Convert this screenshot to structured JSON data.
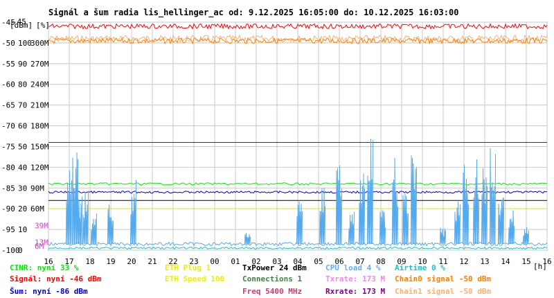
{
  "header": {
    "title": "Signál a šum radia lis_hellinger_ac od: 9.12.2025 16:05:00 do: 10.12.2025 16:03:00",
    "unit_left": "[dBm]",
    "unit_mid": "[%]",
    "unit_right": "[%]",
    "unit_time": "[h]"
  },
  "chart_data": {
    "type": "line",
    "title": "Signál a šum radia lis_hellinger_ac od: 9.12.2025 16:05:00 do: 10.12.2025 16:03:00",
    "xlabel": "[h]",
    "ylabel": "[dBm]",
    "ylim": [
      -100,
      -45
    ],
    "xlim": [
      16,
      40
    ],
    "grid": true,
    "y_ticks": [
      -45,
      -50,
      -55,
      -60,
      -65,
      -70,
      -75,
      -80,
      -85,
      -90,
      -95,
      -100
    ],
    "y_labels_dbm": [
      "-45",
      "-50",
      "-55",
      "-60",
      "-65",
      "-70",
      "-75",
      "-80",
      "-85",
      "-90",
      "-95",
      "-100"
    ],
    "y_labels_pct": [
      "",
      "100",
      "90",
      "80",
      "70",
      "60",
      "50",
      "40",
      "30",
      "20",
      "10",
      "0"
    ],
    "y_labels_rate": [
      "",
      "300M",
      "270M",
      "240M",
      "210M",
      "180M",
      "150M",
      "120M",
      "90M",
      "60M",
      "",
      ""
    ],
    "y_labels_rate_extra": [
      {
        "label": "39M",
        "value": -94.1
      },
      {
        "label": "13M",
        "value": -98.1
      },
      {
        "label": "6M",
        "value": -99.0
      }
    ],
    "x_ticks": [
      16,
      17,
      18,
      19,
      20,
      21,
      22,
      23,
      24,
      25,
      26,
      27,
      28,
      29,
      30,
      31,
      32,
      33,
      34,
      35,
      36,
      37,
      38,
      39,
      40
    ],
    "x_tick_labels": [
      "16",
      "17",
      "18",
      "19",
      "20",
      "21",
      "22",
      "23",
      "00",
      "01",
      "02",
      "03",
      "04",
      "05",
      "06",
      "07",
      "08",
      "09",
      "10",
      "11",
      "12",
      "13",
      "14",
      "15",
      "16"
    ],
    "series": [
      {
        "name": "Signál",
        "color": "#ff0000",
        "level": -46
      },
      {
        "name": "Šum",
        "color": "#0000cc",
        "level": -86
      },
      {
        "name": "CINR",
        "color": "#00ee00",
        "level": -84
      },
      {
        "name": "Chain0 signal",
        "color": "#ff8000",
        "level": -49.5
      },
      {
        "name": "Chain1 signal",
        "color": "#ffb070",
        "level": -49.5
      },
      {
        "name": "CPU load",
        "color": "#55aaee",
        "level": -98.5
      },
      {
        "name": "Airtime",
        "color": "#20c0c0",
        "level": -99.5
      },
      {
        "name": "TxPower",
        "color": "#000000",
        "level": -88
      },
      {
        "name": "Rxrate",
        "color": "#800080",
        "level": -74
      },
      {
        "name": "ETH Speed",
        "color": "#eeee00",
        "level": -90
      }
    ],
    "cpu_spikes": [
      [
        17.0,
        -80
      ],
      [
        17.3,
        -76
      ],
      [
        17.5,
        -87
      ],
      [
        17.8,
        -84
      ],
      [
        18.2,
        -91
      ],
      [
        19.0,
        -87
      ],
      [
        20.1,
        -83
      ],
      [
        25.6,
        -95
      ],
      [
        28.1,
        -86
      ],
      [
        29.2,
        -82
      ],
      [
        30.0,
        -79
      ],
      [
        30.6,
        -89
      ],
      [
        31.1,
        -81
      ],
      [
        31.5,
        -71
      ],
      [
        32.1,
        -90
      ],
      [
        32.7,
        -77
      ],
      [
        33.2,
        -86
      ],
      [
        33.6,
        -74
      ],
      [
        35.0,
        -94
      ],
      [
        35.7,
        -88
      ],
      [
        36.1,
        -79
      ],
      [
        36.6,
        -76
      ],
      [
        37.0,
        -78
      ],
      [
        37.4,
        -74
      ],
      [
        37.8,
        -86
      ],
      [
        38.3,
        -90
      ],
      [
        39.0,
        -94
      ]
    ]
  },
  "legend": [
    {
      "text": "CINR: nyní 33 %",
      "color": "#00ee00"
    },
    {
      "text": "Signál: nyní -46 dBm",
      "color": "#ff0000"
    },
    {
      "text": "Šum: nyní -86 dBm",
      "color": "#0000cc"
    },
    {
      "text": "ETH Plug 1",
      "color": "#eeee00"
    },
    {
      "text": "ETH Speed 100",
      "color": "#eeee00"
    },
    {
      "text": "TxPower 24 dBm",
      "color": "#000000"
    },
    {
      "text": "Connections 1",
      "color": "#408040"
    },
    {
      "text": "Freq 5400 MHz",
      "color": "#c04070"
    },
    {
      "text": "CPU load 4 %",
      "color": "#66aaff"
    },
    {
      "text": "Txrate: 173 M",
      "color": "#ee88ee"
    },
    {
      "text": "Rxrate: 173 M",
      "color": "#800080"
    },
    {
      "text": "Airtime 0 %",
      "color": "#20c0c0"
    },
    {
      "text": "Chain0 signal -50 dBm",
      "color": "#ff8000"
    },
    {
      "text": "Chain1 signal -50 dBm",
      "color": "#ffb070"
    }
  ]
}
